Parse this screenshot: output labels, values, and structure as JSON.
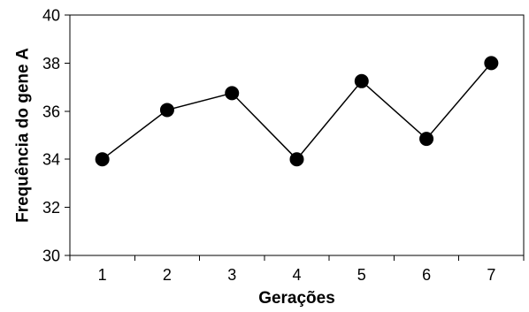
{
  "chart_data": {
    "type": "line",
    "title": "",
    "xlabel": "Gerações",
    "ylabel": "Frequência do gene A",
    "x": [
      1,
      2,
      3,
      4,
      5,
      6,
      7
    ],
    "x_tick_labels": [
      "1",
      "2",
      "3",
      "4",
      "5",
      "6",
      "7"
    ],
    "y_tick_labels": [
      "30",
      "32",
      "34",
      "36",
      "38",
      "40"
    ],
    "y_ticks": [
      30,
      32,
      34,
      36,
      38,
      40
    ],
    "ylim": [
      30,
      40
    ],
    "series": [
      {
        "values": [
          34.0,
          36.05,
          36.75,
          34.0,
          37.25,
          34.85,
          38.0
        ]
      }
    ],
    "grid": false,
    "legend": "none",
    "colors": {
      "line": "#000000",
      "marker": "#000000",
      "axis": "#000000"
    }
  }
}
